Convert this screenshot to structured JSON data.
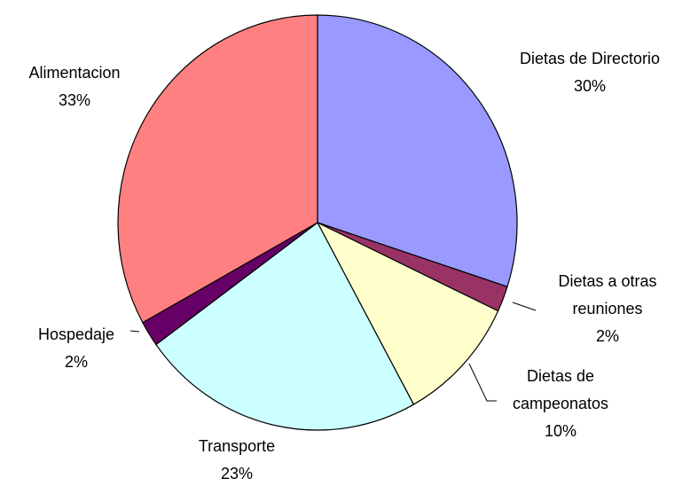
{
  "chart_data": {
    "type": "pie",
    "categories": [
      "Dietas de Directorio",
      "Dietas a otras reuniones",
      "Dietas de campeonatos",
      "Transporte",
      "Hospedaje",
      "Alimentacion"
    ],
    "values": [
      30,
      2,
      10,
      23,
      2,
      33
    ],
    "value_labels": [
      "30%",
      "2%",
      "10%",
      "23%",
      "2%",
      "33%"
    ],
    "colors": [
      "#9999ff",
      "#993366",
      "#ffffcc",
      "#ccffff",
      "#660066",
      "#ff8080"
    ]
  }
}
